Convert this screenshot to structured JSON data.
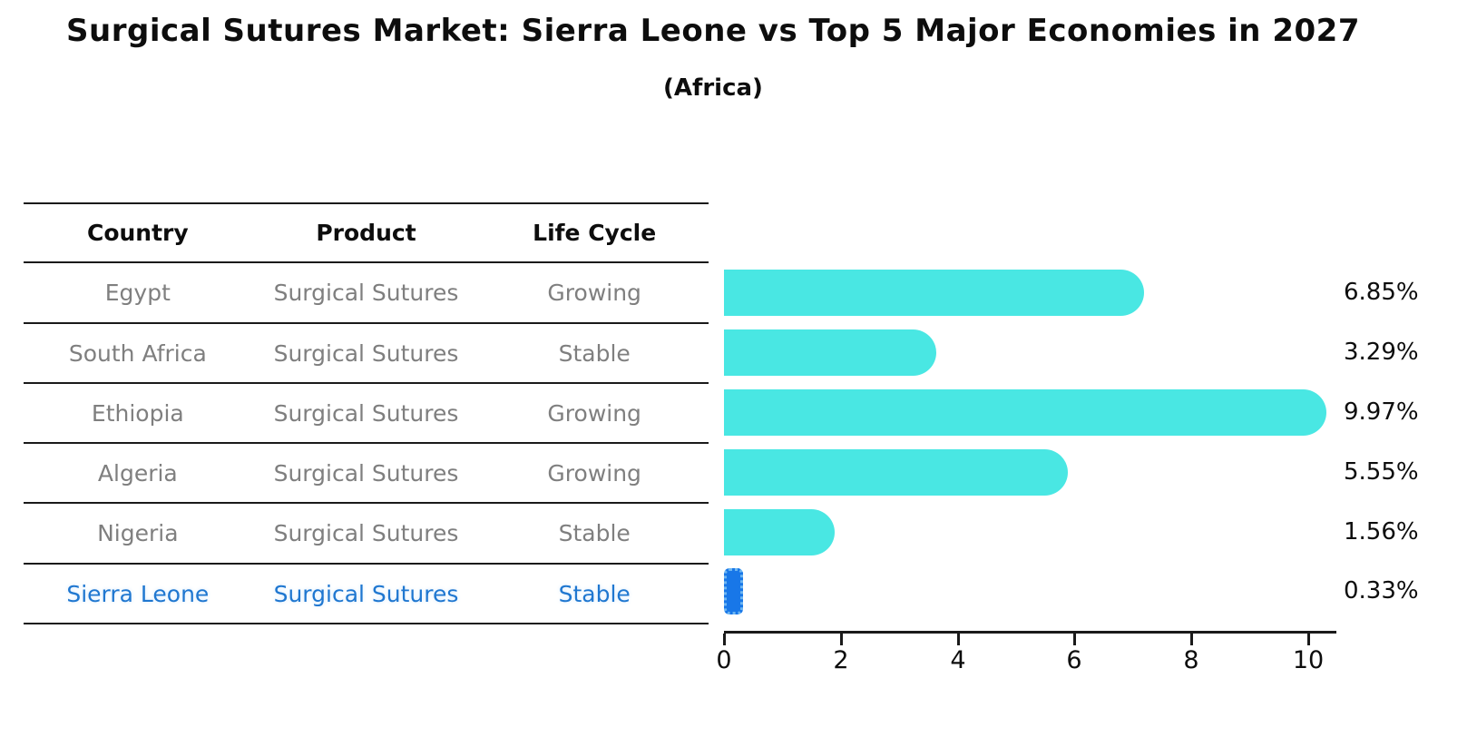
{
  "title": "Surgical Sutures Market: Sierra Leone vs Top 5 Major Economies in 2027",
  "subtitle": "(Africa)",
  "table": {
    "headers": [
      "Country",
      "Product",
      "Life Cycle"
    ],
    "rows": [
      {
        "country": "Egypt",
        "product": "Surgical Sutures",
        "life_cycle": "Growing"
      },
      {
        "country": "South Africa",
        "product": "Surgical Sutures",
        "life_cycle": "Stable"
      },
      {
        "country": "Ethiopia",
        "product": "Surgical Sutures",
        "life_cycle": "Growing"
      },
      {
        "country": "Algeria",
        "product": "Surgical Sutures",
        "life_cycle": "Growing"
      },
      {
        "country": "Nigeria",
        "product": "Surgical Sutures",
        "life_cycle": "Stable"
      },
      {
        "country": "Sierra Leone",
        "product": "Surgical Sutures",
        "life_cycle": "Stable"
      }
    ],
    "highlight_row_index": 5
  },
  "chart_data": {
    "type": "bar",
    "orientation": "horizontal",
    "categories": [
      "Egypt",
      "South Africa",
      "Ethiopia",
      "Algeria",
      "Nigeria",
      "Sierra Leone"
    ],
    "values": [
      6.85,
      3.29,
      9.97,
      5.55,
      1.56,
      0.33
    ],
    "value_labels": [
      "6.85%",
      "3.29%",
      "9.97%",
      "5.55%",
      "1.56%",
      "0.33%"
    ],
    "xticks": [
      0,
      2,
      4,
      6,
      8,
      10
    ],
    "xlim": [
      0,
      10.5
    ],
    "grid": false,
    "legend": "none",
    "bar_color": "#49e7e3",
    "highlight_color": "#1877e8",
    "highlight_index": 5,
    "title": "Surgical Sutures Market: Sierra Leone vs Top 5 Major Economies in 2027 (Africa)",
    "xlabel": "",
    "ylabel": ""
  },
  "colors": {
    "table_text": "#7f7f7f",
    "header_text": "#0d0d0d",
    "highlight_text": "#1f77d0",
    "axis": "#1a1a1a"
  }
}
